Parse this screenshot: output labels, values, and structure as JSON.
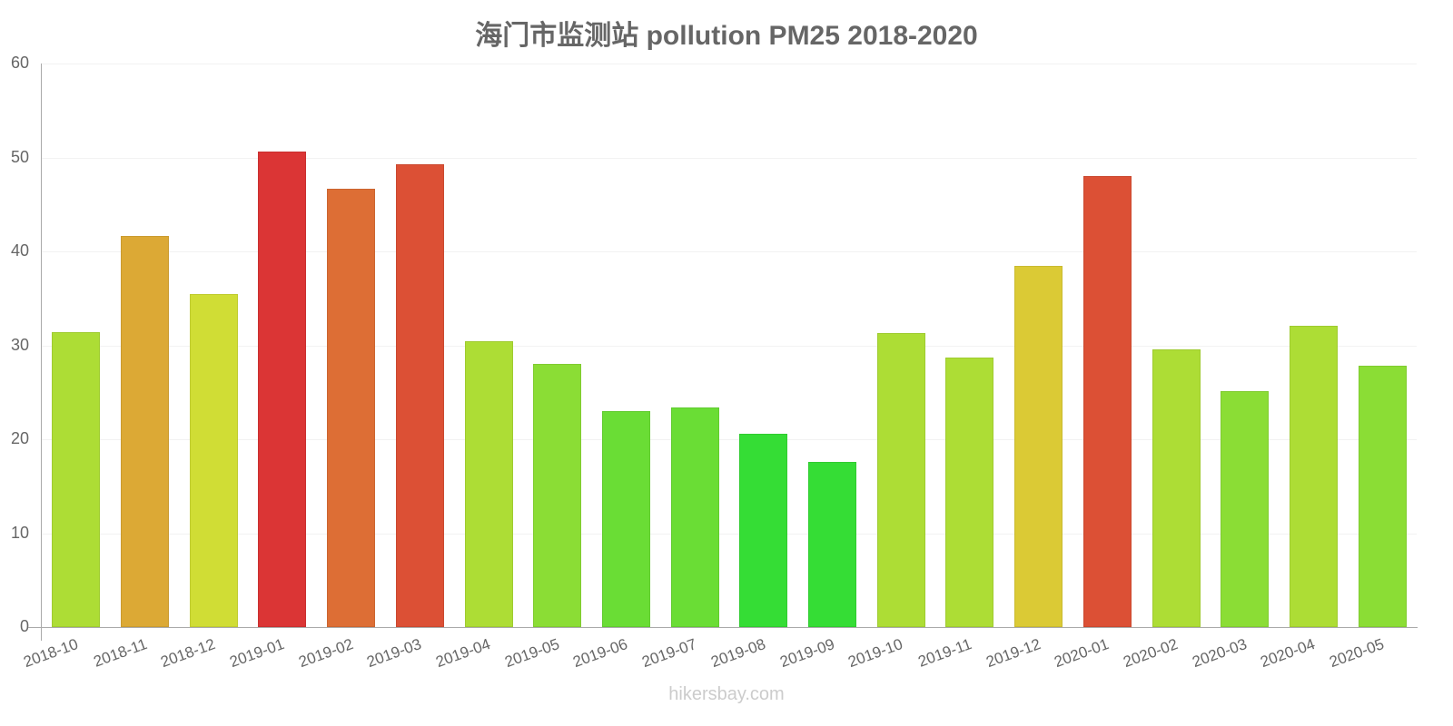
{
  "chart_data": {
    "type": "bar",
    "title": "海门市监测站 pollution PM25 2018-2020",
    "xlabel": "",
    "ylabel": "",
    "ylim": [
      0,
      60
    ],
    "yticks": [
      0,
      10,
      20,
      30,
      40,
      50,
      60
    ],
    "grid": true,
    "legend": null,
    "categories": [
      "2018-10",
      "2018-11",
      "2018-12",
      "2019-01",
      "2019-02",
      "2019-03",
      "2019-04",
      "2019-05",
      "2019-06",
      "2019-07",
      "2019-08",
      "2019-09",
      "2019-10",
      "2019-11",
      "2019-12",
      "2020-01",
      "2020-02",
      "2020-03",
      "2020-04",
      "2020-05"
    ],
    "values": [
      31.4,
      41.6,
      35.5,
      50.6,
      46.7,
      49.3,
      30.4,
      28.0,
      23.0,
      23.4,
      20.6,
      17.6,
      31.3,
      28.7,
      38.5,
      48.0,
      29.6,
      25.1,
      32.1,
      27.8
    ],
    "colors": [
      "#addd35",
      "#dca935",
      "#d0dd35",
      "#db3535",
      "#dd6e35",
      "#dc5035",
      "#addd35",
      "#8bdd35",
      "#6add35",
      "#6add35",
      "#35dd35",
      "#35dd35",
      "#addd35",
      "#addd35",
      "#dbca35",
      "#dc5035",
      "#addd35",
      "#8bdd35",
      "#addd35",
      "#8bdd35"
    ]
  },
  "footer": "hikersbay.com"
}
